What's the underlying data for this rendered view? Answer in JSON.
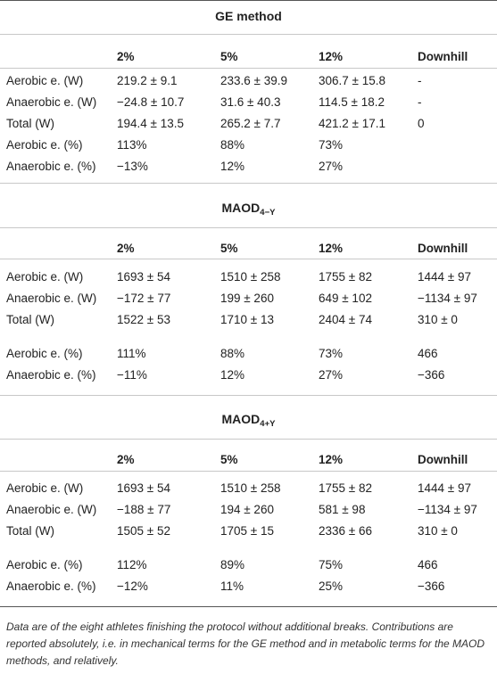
{
  "columns": [
    "2%",
    "5%",
    "12%",
    "Downhill"
  ],
  "sections": [
    {
      "title": "GE method",
      "title_sub": "",
      "rows": [
        [
          "Aerobic e. (W)",
          "219.2 ± 9.1",
          "233.6 ± 39.9",
          "306.7 ± 15.8",
          "-"
        ],
        [
          "Anaerobic e. (W)",
          "−24.8 ± 10.7",
          "31.6 ± 40.3",
          "114.5 ± 18.2",
          "-"
        ],
        [
          "Total (W)",
          "194.4 ± 13.5",
          "265.2 ± 7.7",
          "421.2 ± 17.1",
          "0"
        ],
        [
          "Aerobic e. (%)",
          "113%",
          "88%",
          "73%",
          ""
        ],
        [
          "Anaerobic e. (%)",
          "−13%",
          "12%",
          "27%",
          ""
        ]
      ]
    },
    {
      "title": "MAOD",
      "title_sub": "4−Y",
      "rows": [
        [
          "Aerobic e. (W)",
          "1693 ± 54",
          "1510 ± 258",
          "1755 ± 82",
          "1444 ± 97"
        ],
        [
          "Anaerobic e. (W)",
          "−172 ± 77",
          "199 ± 260",
          "649 ± 102",
          "−1134 ± 97"
        ],
        [
          "Total (W)",
          "1522 ± 53",
          "1710 ± 13",
          "2404 ± 74",
          "310 ± 0"
        ],
        [
          "Aerobic e. (%)",
          "111%",
          "88%",
          "73%",
          "466"
        ],
        [
          "Anaerobic e. (%)",
          "−11%",
          "12%",
          "27%",
          "−366"
        ]
      ]
    },
    {
      "title": "MAOD",
      "title_sub": "4+Y",
      "rows": [
        [
          "Aerobic e. (W)",
          "1693 ± 54",
          "1510 ± 258",
          "1755 ± 82",
          "1444 ± 97"
        ],
        [
          "Anaerobic e. (W)",
          "−188 ± 77",
          "194 ± 260",
          "581 ± 98",
          "−1134 ± 97"
        ],
        [
          "Total (W)",
          "1505 ± 52",
          "1705 ± 15",
          "2336 ± 66",
          "310 ± 0"
        ],
        [
          "Aerobic e. (%)",
          "112%",
          "89%",
          "75%",
          "466"
        ],
        [
          "Anaerobic e. (%)",
          "−12%",
          "11%",
          "25%",
          "−366"
        ]
      ]
    }
  ],
  "footnote": "Data are of the eight athletes finishing the protocol without additional breaks. Contributions are reported absolutely, i.e. in mechanical terms for the GE method and in metabolic terms for the MAOD methods, and relatively."
}
